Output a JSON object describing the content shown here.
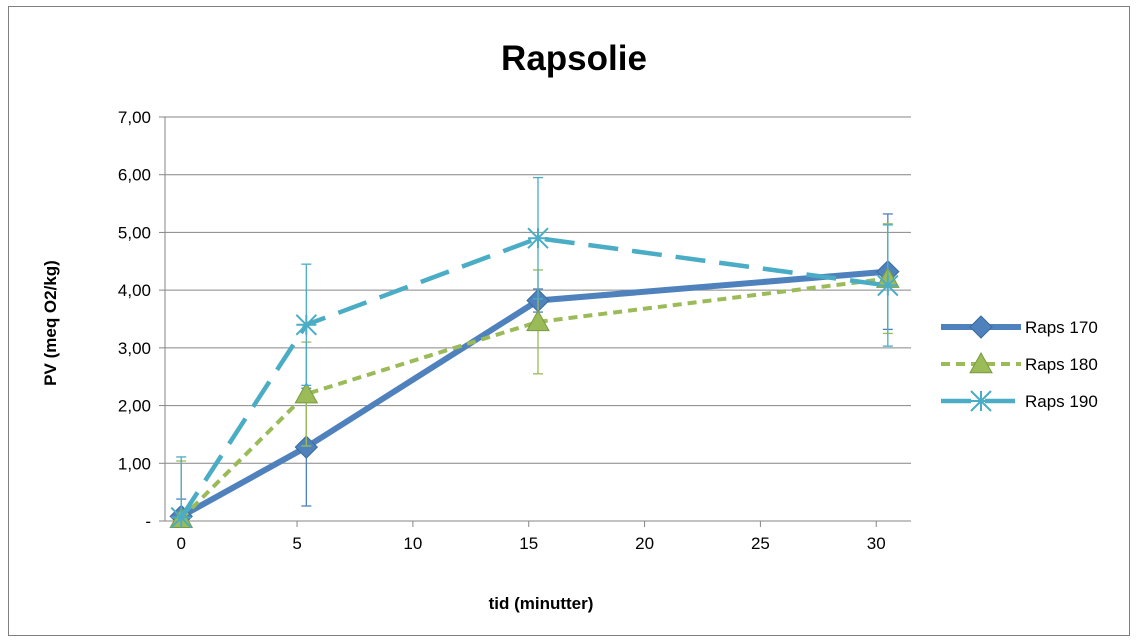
{
  "chart_data": {
    "type": "line",
    "title": "Rapsolie",
    "xlabel": "tid (minutter)",
    "ylabel": "PV (meq O2/kg)",
    "xlim": [
      -0.7,
      31.5
    ],
    "ylim": [
      0,
      7
    ],
    "x_ticks": [
      0,
      5,
      10,
      15,
      20,
      25,
      30
    ],
    "x_tick_labels": [
      "0",
      "5",
      "10",
      "15",
      "20",
      "25",
      "30"
    ],
    "y_ticks": [
      0,
      1,
      2,
      3,
      4,
      5,
      6,
      7
    ],
    "y_tick_labels": [
      "-",
      "1,00",
      "2,00",
      "3,00",
      "4,00",
      "5,00",
      "6,00",
      "7,00"
    ],
    "grid": "horizontal",
    "legend_position": "right",
    "series": [
      {
        "name": "Raps 170",
        "color": "#4f81bd",
        "line_style": "solid",
        "marker": "diamond",
        "x": [
          0,
          5.4,
          15.4,
          30.5
        ],
        "y": [
          0.08,
          1.28,
          3.82,
          4.32
        ],
        "error": [
          0.3,
          1.02,
          0.2,
          1.0
        ]
      },
      {
        "name": "Raps 180",
        "color": "#9bbb59",
        "line_style": "short-dash",
        "marker": "triangle",
        "x": [
          0,
          5.4,
          15.4,
          30.5
        ],
        "y": [
          0.04,
          2.2,
          3.45,
          4.2
        ],
        "error": [
          1.0,
          0.9,
          0.9,
          0.95
        ]
      },
      {
        "name": "Raps 190",
        "color": "#4bacc6",
        "line_style": "long-dash",
        "marker": "asterisk",
        "x": [
          0,
          5.4,
          15.4,
          30.5
        ],
        "y": [
          0.06,
          3.4,
          4.9,
          4.08
        ],
        "error": [
          1.05,
          1.05,
          1.05,
          1.05
        ]
      }
    ]
  }
}
